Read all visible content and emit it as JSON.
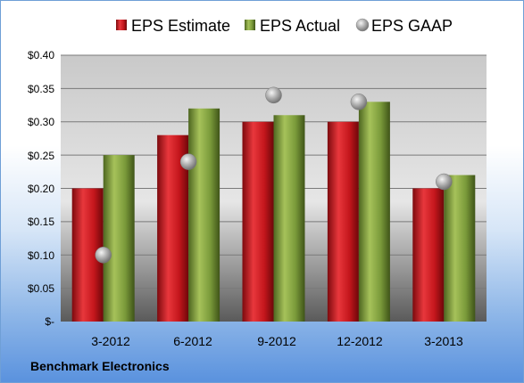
{
  "company": "Benchmark Electronics",
  "chart_data": {
    "type": "bar",
    "categories": [
      "3-2012",
      "6-2012",
      "9-2012",
      "12-2012",
      "3-2013"
    ],
    "series": [
      {
        "name": "EPS Estimate",
        "kind": "bar",
        "color": "#c4161c",
        "values": [
          0.2,
          0.28,
          0.3,
          0.3,
          0.2
        ]
      },
      {
        "name": "EPS Actual",
        "kind": "bar",
        "color": "#7a9a3a",
        "values": [
          0.25,
          0.32,
          0.31,
          0.33,
          0.22
        ]
      },
      {
        "name": "EPS GAAP",
        "kind": "marker",
        "color": "#9a9a9a",
        "values": [
          0.1,
          0.24,
          0.34,
          0.33,
          0.21
        ]
      }
    ],
    "y_ticks": [
      "$-",
      "$0.05",
      "$0.10",
      "$0.15",
      "$0.20",
      "$0.25",
      "$0.30",
      "$0.35",
      "$0.40"
    ],
    "ylim": [
      0,
      0.4
    ],
    "grid": true,
    "legend_position": "top"
  }
}
